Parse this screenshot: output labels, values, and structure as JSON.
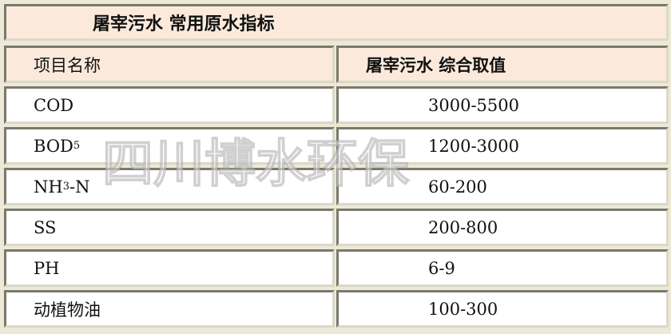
{
  "title": "屠宰污水  常用原水指标",
  "headers": [
    "项目名称",
    "屠宰污水  综合取值"
  ],
  "rows": [
    {
      "name": "COD",
      "value": "3000-5500"
    },
    {
      "name_main": "BOD",
      "name_sub": "5",
      "value": "1200-3000"
    },
    {
      "name_main": "NH",
      "name_sub": "3",
      "name_tail": "-N",
      "value": "60-200"
    },
    {
      "name": "SS",
      "value": "200-800"
    },
    {
      "name": "PH",
      "value": "6-9"
    },
    {
      "name": "动植物油",
      "value": "100-300"
    }
  ],
  "watermark": "四川博水环保"
}
